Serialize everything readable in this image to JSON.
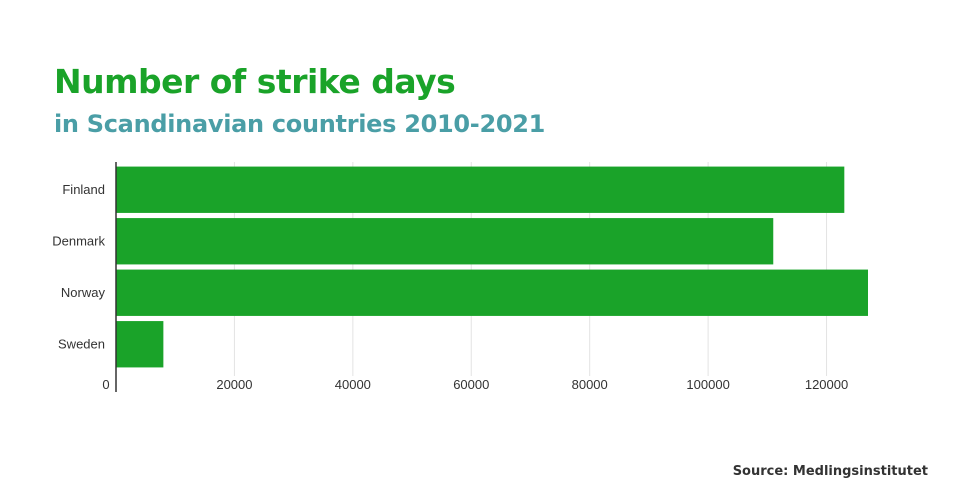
{
  "chart_data": {
    "type": "bar",
    "orientation": "horizontal",
    "title": "Number of strike days",
    "subtitle": "in Scandinavian countries 2010-2021",
    "source": "Source: Medlingsinstitutet",
    "categories": [
      "Finland",
      "Denmark",
      "Norway",
      "Sweden"
    ],
    "values": [
      123000,
      111000,
      127000,
      8000
    ],
    "xlim": [
      0,
      127000
    ],
    "xticks": [
      0,
      20000,
      40000,
      60000,
      80000,
      100000,
      120000
    ],
    "xtick_labels": [
      "0",
      "20000",
      "40000",
      "60000",
      "80000",
      "100000",
      "120000"
    ],
    "grid": "vertical",
    "bar_color": "#1aa329",
    "title_color": "#1aa329",
    "subtitle_color": "#4a9ea6"
  }
}
